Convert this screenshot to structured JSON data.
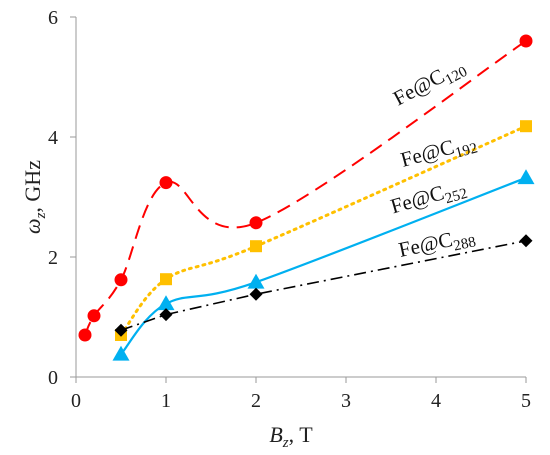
{
  "chart_data": {
    "type": "line",
    "xlabel": {
      "main": "B",
      "sub": "z",
      "unit": ", T"
    },
    "ylabel": {
      "main": "ω",
      "sub": "z",
      "unit": ", GHz"
    },
    "xlim": [
      0,
      5
    ],
    "ylim": [
      0,
      6
    ],
    "xticks": [
      "0",
      "1",
      "2",
      "3",
      "4",
      "5"
    ],
    "yticks": [
      "0",
      "2",
      "4",
      "6"
    ],
    "grid": false,
    "legend": "inline labels at line ends",
    "series": [
      {
        "name": "Fe@C120",
        "label_main": "Fe@C",
        "label_sub": "120",
        "color": "#ff0000",
        "marker": "circle",
        "line_style": "dashed",
        "x": [
          0.1,
          0.2,
          0.5,
          1,
          2,
          5
        ],
        "y": [
          0.7,
          1.02,
          1.62,
          3.24,
          2.57,
          5.6
        ]
      },
      {
        "name": "Fe@C192",
        "label_main": "Fe@C",
        "label_sub": "192",
        "color": "#ffc000",
        "marker": "square",
        "line_style": "dotted",
        "x": [
          0.5,
          1,
          2,
          5
        ],
        "y": [
          0.7,
          1.63,
          2.18,
          4.18
        ]
      },
      {
        "name": "Fe@C252",
        "label_main": "Fe@C",
        "label_sub": "252",
        "color": "#00b0f0",
        "marker": "triangle",
        "line_style": "solid",
        "x": [
          0.5,
          1,
          2,
          5
        ],
        "y": [
          0.38,
          1.22,
          1.58,
          3.32
        ]
      },
      {
        "name": "Fe@C288",
        "label_main": "Fe@C",
        "label_sub": "288",
        "color": "#000000",
        "marker": "diamond",
        "line_style": "dash-dot",
        "x": [
          0.5,
          1,
          2,
          5
        ],
        "y": [
          0.78,
          1.04,
          1.38,
          2.27
        ]
      }
    ]
  }
}
